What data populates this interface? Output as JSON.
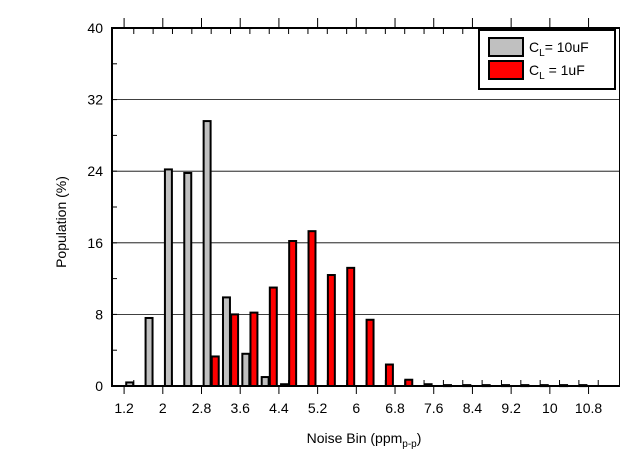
{
  "chart_data": {
    "type": "bar",
    "xlabel_main": "Noise Bin (ppm",
    "xlabel_sub": "p-p",
    "xlabel_close": ")",
    "ylabel": "Population (%)",
    "ylim": [
      0,
      40
    ],
    "y_ticks": [
      "0",
      "8",
      "16",
      "24",
      "32",
      "40"
    ],
    "x_ticks": [
      "1.2",
      "2",
      "2.8",
      "3.6",
      "4.4",
      "5.2",
      "6",
      "6.8",
      "7.6",
      "8.4",
      "9.2",
      "10",
      "10.8"
    ],
    "x_tick_values": [
      1.2,
      2,
      2.8,
      3.6,
      4.4,
      5.2,
      6,
      6.8,
      7.6,
      8.4,
      9.2,
      10,
      10.8
    ],
    "x_range": [
      0.95,
      11.45
    ],
    "bin_width": 0.4,
    "bin_centers": [
      1.4,
      1.8,
      2.2,
      2.6,
      3.0,
      3.4,
      3.8,
      4.2,
      4.6,
      5.0,
      5.4,
      5.8,
      6.2,
      6.6,
      7.0,
      7.4,
      7.8,
      8.2,
      8.6,
      9.0,
      9.4,
      9.8,
      10.2,
      10.6,
      11.0
    ],
    "grid": "horizontal",
    "legend_position": "top-right",
    "series": [
      {
        "legend_main": "C",
        "legend_sub": "L",
        "legend_rest": "= 10uF",
        "color": "#c0c0c0",
        "values": [
          0.4,
          7.6,
          24.2,
          23.8,
          29.6,
          9.9,
          3.6,
          1.0,
          0.2,
          0,
          0,
          0,
          0,
          0,
          0,
          0,
          0,
          0,
          0,
          0,
          0,
          0,
          0,
          0,
          0
        ]
      },
      {
        "legend_main": "C",
        "legend_sub": "L",
        "legend_rest": " = 1uF",
        "color": "#ff0000",
        "values": [
          0,
          0,
          0,
          0,
          3.3,
          8.0,
          8.2,
          11.0,
          16.2,
          17.3,
          12.4,
          13.2,
          7.4,
          2.4,
          0.7,
          0.2,
          0.1,
          0.1,
          0.1,
          0.1,
          0.1,
          0.1,
          0.1,
          0.1,
          0
        ]
      }
    ]
  }
}
